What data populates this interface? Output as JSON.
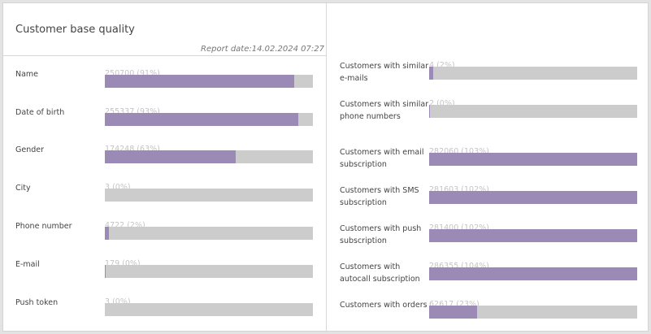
{
  "title": "Customer base quality",
  "report_date": "Report date:14.02.2024 07:27",
  "colors": {
    "fill": "#9b8ab5",
    "track": "#cccccc"
  },
  "left": [
    {
      "label": "Name",
      "value": "250700 (91%)",
      "fill_percent": 91
    },
    {
      "label": "Date of birth",
      "value": "255337 (93%)",
      "fill_percent": 93
    },
    {
      "label": "Gender",
      "value": "174248 (63%)",
      "fill_percent": 63
    },
    {
      "label": "City",
      "value": "3 (0%)",
      "fill_percent": 0
    },
    {
      "label": "Phone number",
      "value": "4722 (2%)",
      "fill_percent": 2
    },
    {
      "label": "E-mail",
      "value": "179 (0%)",
      "fill_percent": 0.3
    },
    {
      "label": "Push token",
      "value": "3 (0%)",
      "fill_percent": 0
    }
  ],
  "right": [
    {
      "label": "Customers with similar e-mails",
      "value": "4 (2%)",
      "fill_percent": 2
    },
    {
      "label": "Customers with similar phone numbers",
      "value": "2 (0%)",
      "fill_percent": 0.3
    },
    {
      "label": "Customers with email subscription",
      "value": "282060 (103%)",
      "fill_percent": 100
    },
    {
      "label": "Customers with SMS subscription",
      "value": "281603 (102%)",
      "fill_percent": 100
    },
    {
      "label": "Customers with push subscription",
      "value": "281400 (102%)",
      "fill_percent": 100
    },
    {
      "label": "Customers with autocall subscription",
      "value": "286355 (104%)",
      "fill_percent": 100
    },
    {
      "label": "Customers with orders",
      "value": "62617 (23%)",
      "fill_percent": 23
    }
  ]
}
